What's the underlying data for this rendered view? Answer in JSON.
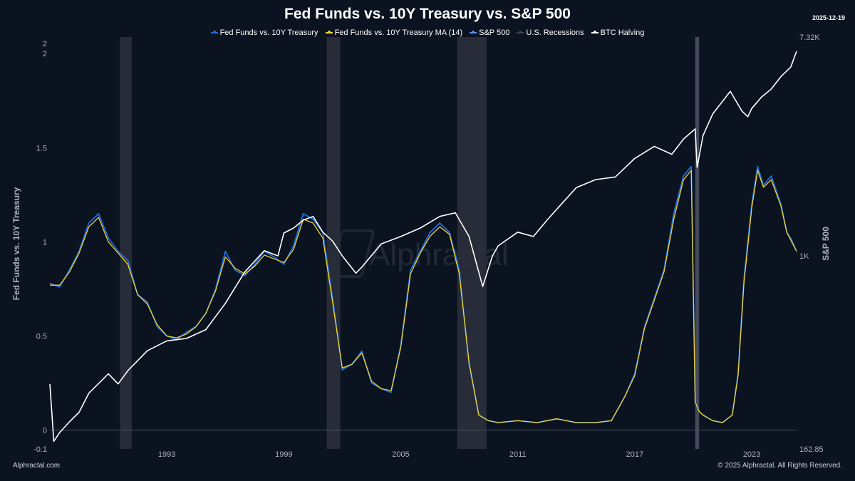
{
  "header": {
    "title": "Fed Funds vs. 10Y Treasury vs. S&P 500",
    "date": "2025-12-19"
  },
  "legend": [
    {
      "label": "Fed Funds vs. 10Y Treasury",
      "color": "#1e6fe0"
    },
    {
      "label": "Fed Funds vs. 10Y Treasury MA (14)",
      "color": "#f2d22e"
    },
    {
      "label": "S&P 500",
      "color": "#5b8def"
    },
    {
      "label": "U.S. Recessions",
      "color": "#3a4150"
    },
    {
      "label": "BTC Halving",
      "color": "#ffffff"
    }
  ],
  "footer": {
    "site": "Alphractal.com",
    "copyright": "© 2025 Alphractal. All Rights Reserved."
  },
  "watermark": "Alphractal",
  "chart_data": {
    "type": "line",
    "title": "Fed Funds vs. 10Y Treasury vs. S&P 500",
    "ylabel": "Fed Funds vs. 10Y Treasury",
    "y2label": "S&P 500",
    "xlim": [
      1987.0,
      2025.3
    ],
    "ylim": [
      -0.1,
      2.05
    ],
    "y_ticks": [
      {
        "v": 2.0,
        "label": "2"
      },
      {
        "v": 1.5,
        "label": "1.5"
      },
      {
        "v": 1.0,
        "label": "1"
      },
      {
        "v": 0.5,
        "label": "0.5"
      },
      {
        "v": 0.0,
        "label": "0"
      },
      {
        "v": -0.1,
        "label": "-0.1"
      }
    ],
    "y_tick_extra": "2",
    "x_ticks": [
      1993,
      1999,
      2005,
      2011,
      2017,
      2023
    ],
    "y2_labels": {
      "top": "7.32K",
      "mid": "1K",
      "bottom": "162.85"
    },
    "y2_range": [
      162.85,
      7320
    ],
    "y2_mid_value": 1000,
    "recessions": [
      [
        1990.6,
        1991.2
      ],
      [
        2001.2,
        2001.9
      ],
      [
        2007.9,
        2009.4
      ],
      [
        2020.1,
        2020.3
      ]
    ],
    "series": [
      {
        "name": "Fed Funds vs. 10Y Treasury",
        "color": "#1e6fe0",
        "x": [
          1987.0,
          1987.5,
          1988.0,
          1988.5,
          1989.0,
          1989.5,
          1990.0,
          1990.5,
          1991.0,
          1991.5,
          1992.0,
          1992.5,
          1993.0,
          1993.5,
          1994.0,
          1994.5,
          1995.0,
          1995.5,
          1996.0,
          1996.5,
          1997.0,
          1997.5,
          1998.0,
          1998.5,
          1999.0,
          1999.5,
          2000.0,
          2000.5,
          2001.0,
          2001.5,
          2002.0,
          2002.5,
          2003.0,
          2003.5,
          2004.0,
          2004.5,
          2005.0,
          2005.5,
          2006.0,
          2006.5,
          2007.0,
          2007.5,
          2008.0,
          2008.5,
          2009.0,
          2009.5,
          2010.0,
          2011.0,
          2012.0,
          2013.0,
          2014.0,
          2015.0,
          2015.8,
          2016.5,
          2017.0,
          2017.5,
          2018.0,
          2018.5,
          2019.0,
          2019.5,
          2019.9,
          2020.1,
          2020.3,
          2020.5,
          2021.0,
          2021.5,
          2022.0,
          2022.3,
          2022.6,
          2023.0,
          2023.3,
          2023.6,
          2024.0,
          2024.5,
          2024.8,
          2025.0,
          2025.3
        ],
        "y": [
          0.78,
          0.76,
          0.85,
          0.95,
          1.1,
          1.15,
          1.02,
          0.95,
          0.9,
          0.72,
          0.68,
          0.55,
          0.5,
          0.48,
          0.52,
          0.55,
          0.62,
          0.75,
          0.95,
          0.85,
          0.82,
          0.88,
          0.95,
          0.92,
          0.88,
          0.98,
          1.15,
          1.12,
          1.05,
          0.7,
          0.32,
          0.35,
          0.42,
          0.25,
          0.22,
          0.2,
          0.45,
          0.85,
          0.95,
          1.05,
          1.1,
          1.05,
          0.85,
          0.35,
          0.08,
          0.05,
          0.04,
          0.05,
          0.04,
          0.06,
          0.04,
          0.04,
          0.05,
          0.18,
          0.3,
          0.55,
          0.7,
          0.85,
          1.15,
          1.35,
          1.4,
          0.15,
          0.1,
          0.08,
          0.05,
          0.04,
          0.08,
          0.3,
          0.8,
          1.2,
          1.4,
          1.3,
          1.35,
          1.2,
          1.05,
          1.02,
          0.95
        ]
      },
      {
        "name": "Fed Funds vs. 10Y Treasury MA (14)",
        "color": "#f2d22e",
        "x": [
          1987.0,
          1987.5,
          1988.0,
          1988.5,
          1989.0,
          1989.5,
          1990.0,
          1990.5,
          1991.0,
          1991.5,
          1992.0,
          1992.5,
          1993.0,
          1993.5,
          1994.0,
          1994.5,
          1995.0,
          1995.5,
          1996.0,
          1996.5,
          1997.0,
          1997.5,
          1998.0,
          1998.5,
          1999.0,
          1999.5,
          2000.0,
          2000.5,
          2001.0,
          2001.5,
          2002.0,
          2002.5,
          2003.0,
          2003.5,
          2004.0,
          2004.5,
          2005.0,
          2005.5,
          2006.0,
          2006.5,
          2007.0,
          2007.5,
          2008.0,
          2008.5,
          2009.0,
          2009.5,
          2010.0,
          2011.0,
          2012.0,
          2013.0,
          2014.0,
          2015.0,
          2015.8,
          2016.5,
          2017.0,
          2017.5,
          2018.0,
          2018.5,
          2019.0,
          2019.5,
          2019.9,
          2020.1,
          2020.3,
          2020.5,
          2021.0,
          2021.5,
          2022.0,
          2022.3,
          2022.6,
          2023.0,
          2023.3,
          2023.6,
          2024.0,
          2024.5,
          2024.8,
          2025.0,
          2025.3
        ],
        "y": [
          0.77,
          0.77,
          0.84,
          0.94,
          1.08,
          1.13,
          1.0,
          0.94,
          0.88,
          0.72,
          0.67,
          0.56,
          0.5,
          0.49,
          0.51,
          0.55,
          0.62,
          0.74,
          0.92,
          0.86,
          0.83,
          0.87,
          0.93,
          0.91,
          0.89,
          0.96,
          1.12,
          1.1,
          1.02,
          0.68,
          0.33,
          0.35,
          0.41,
          0.26,
          0.22,
          0.21,
          0.44,
          0.83,
          0.94,
          1.03,
          1.08,
          1.04,
          0.83,
          0.36,
          0.08,
          0.05,
          0.04,
          0.05,
          0.04,
          0.06,
          0.04,
          0.04,
          0.05,
          0.18,
          0.29,
          0.54,
          0.69,
          0.84,
          1.12,
          1.33,
          1.38,
          0.15,
          0.1,
          0.08,
          0.05,
          0.04,
          0.08,
          0.29,
          0.78,
          1.18,
          1.38,
          1.29,
          1.33,
          1.19,
          1.05,
          1.01,
          0.95
        ]
      },
      {
        "name": "S&P 500",
        "color": "#ffffff",
        "x": [
          1987.0,
          1987.2,
          1987.5,
          1988.0,
          1988.5,
          1989.0,
          1990.0,
          1990.5,
          1991.0,
          1992.0,
          1993.0,
          1994.0,
          1995.0,
          1996.0,
          1997.0,
          1998.0,
          1998.7,
          1999.0,
          1999.5,
          2000.0,
          2000.5,
          2001.0,
          2001.5,
          2002.0,
          2002.7,
          2003.0,
          2004.0,
          2005.0,
          2006.0,
          2007.0,
          2007.8,
          2008.5,
          2009.2,
          2009.7,
          2010.0,
          2011.0,
          2011.8,
          2012.5,
          2013.0,
          2014.0,
          2015.0,
          2016.0,
          2017.0,
          2018.0,
          2018.9,
          2019.5,
          2020.1,
          2020.2,
          2020.5,
          2021.0,
          2021.9,
          2022.5,
          2022.8,
          2023.0,
          2023.5,
          2024.0,
          2024.5,
          2025.0,
          2025.3
        ],
        "y": [
          300,
          175,
          190,
          210,
          230,
          275,
          330,
          300,
          340,
          410,
          450,
          460,
          500,
          640,
          860,
          1050,
          1000,
          1240,
          1300,
          1400,
          1450,
          1250,
          1150,
          1000,
          850,
          900,
          1120,
          1200,
          1300,
          1450,
          1500,
          1200,
          750,
          1000,
          1100,
          1250,
          1200,
          1400,
          1550,
          1900,
          2050,
          2100,
          2500,
          2800,
          2600,
          3000,
          3300,
          2300,
          3100,
          3800,
          4700,
          3900,
          3700,
          4000,
          4450,
          4800,
          5400,
          5900,
          6850
        ]
      }
    ]
  }
}
